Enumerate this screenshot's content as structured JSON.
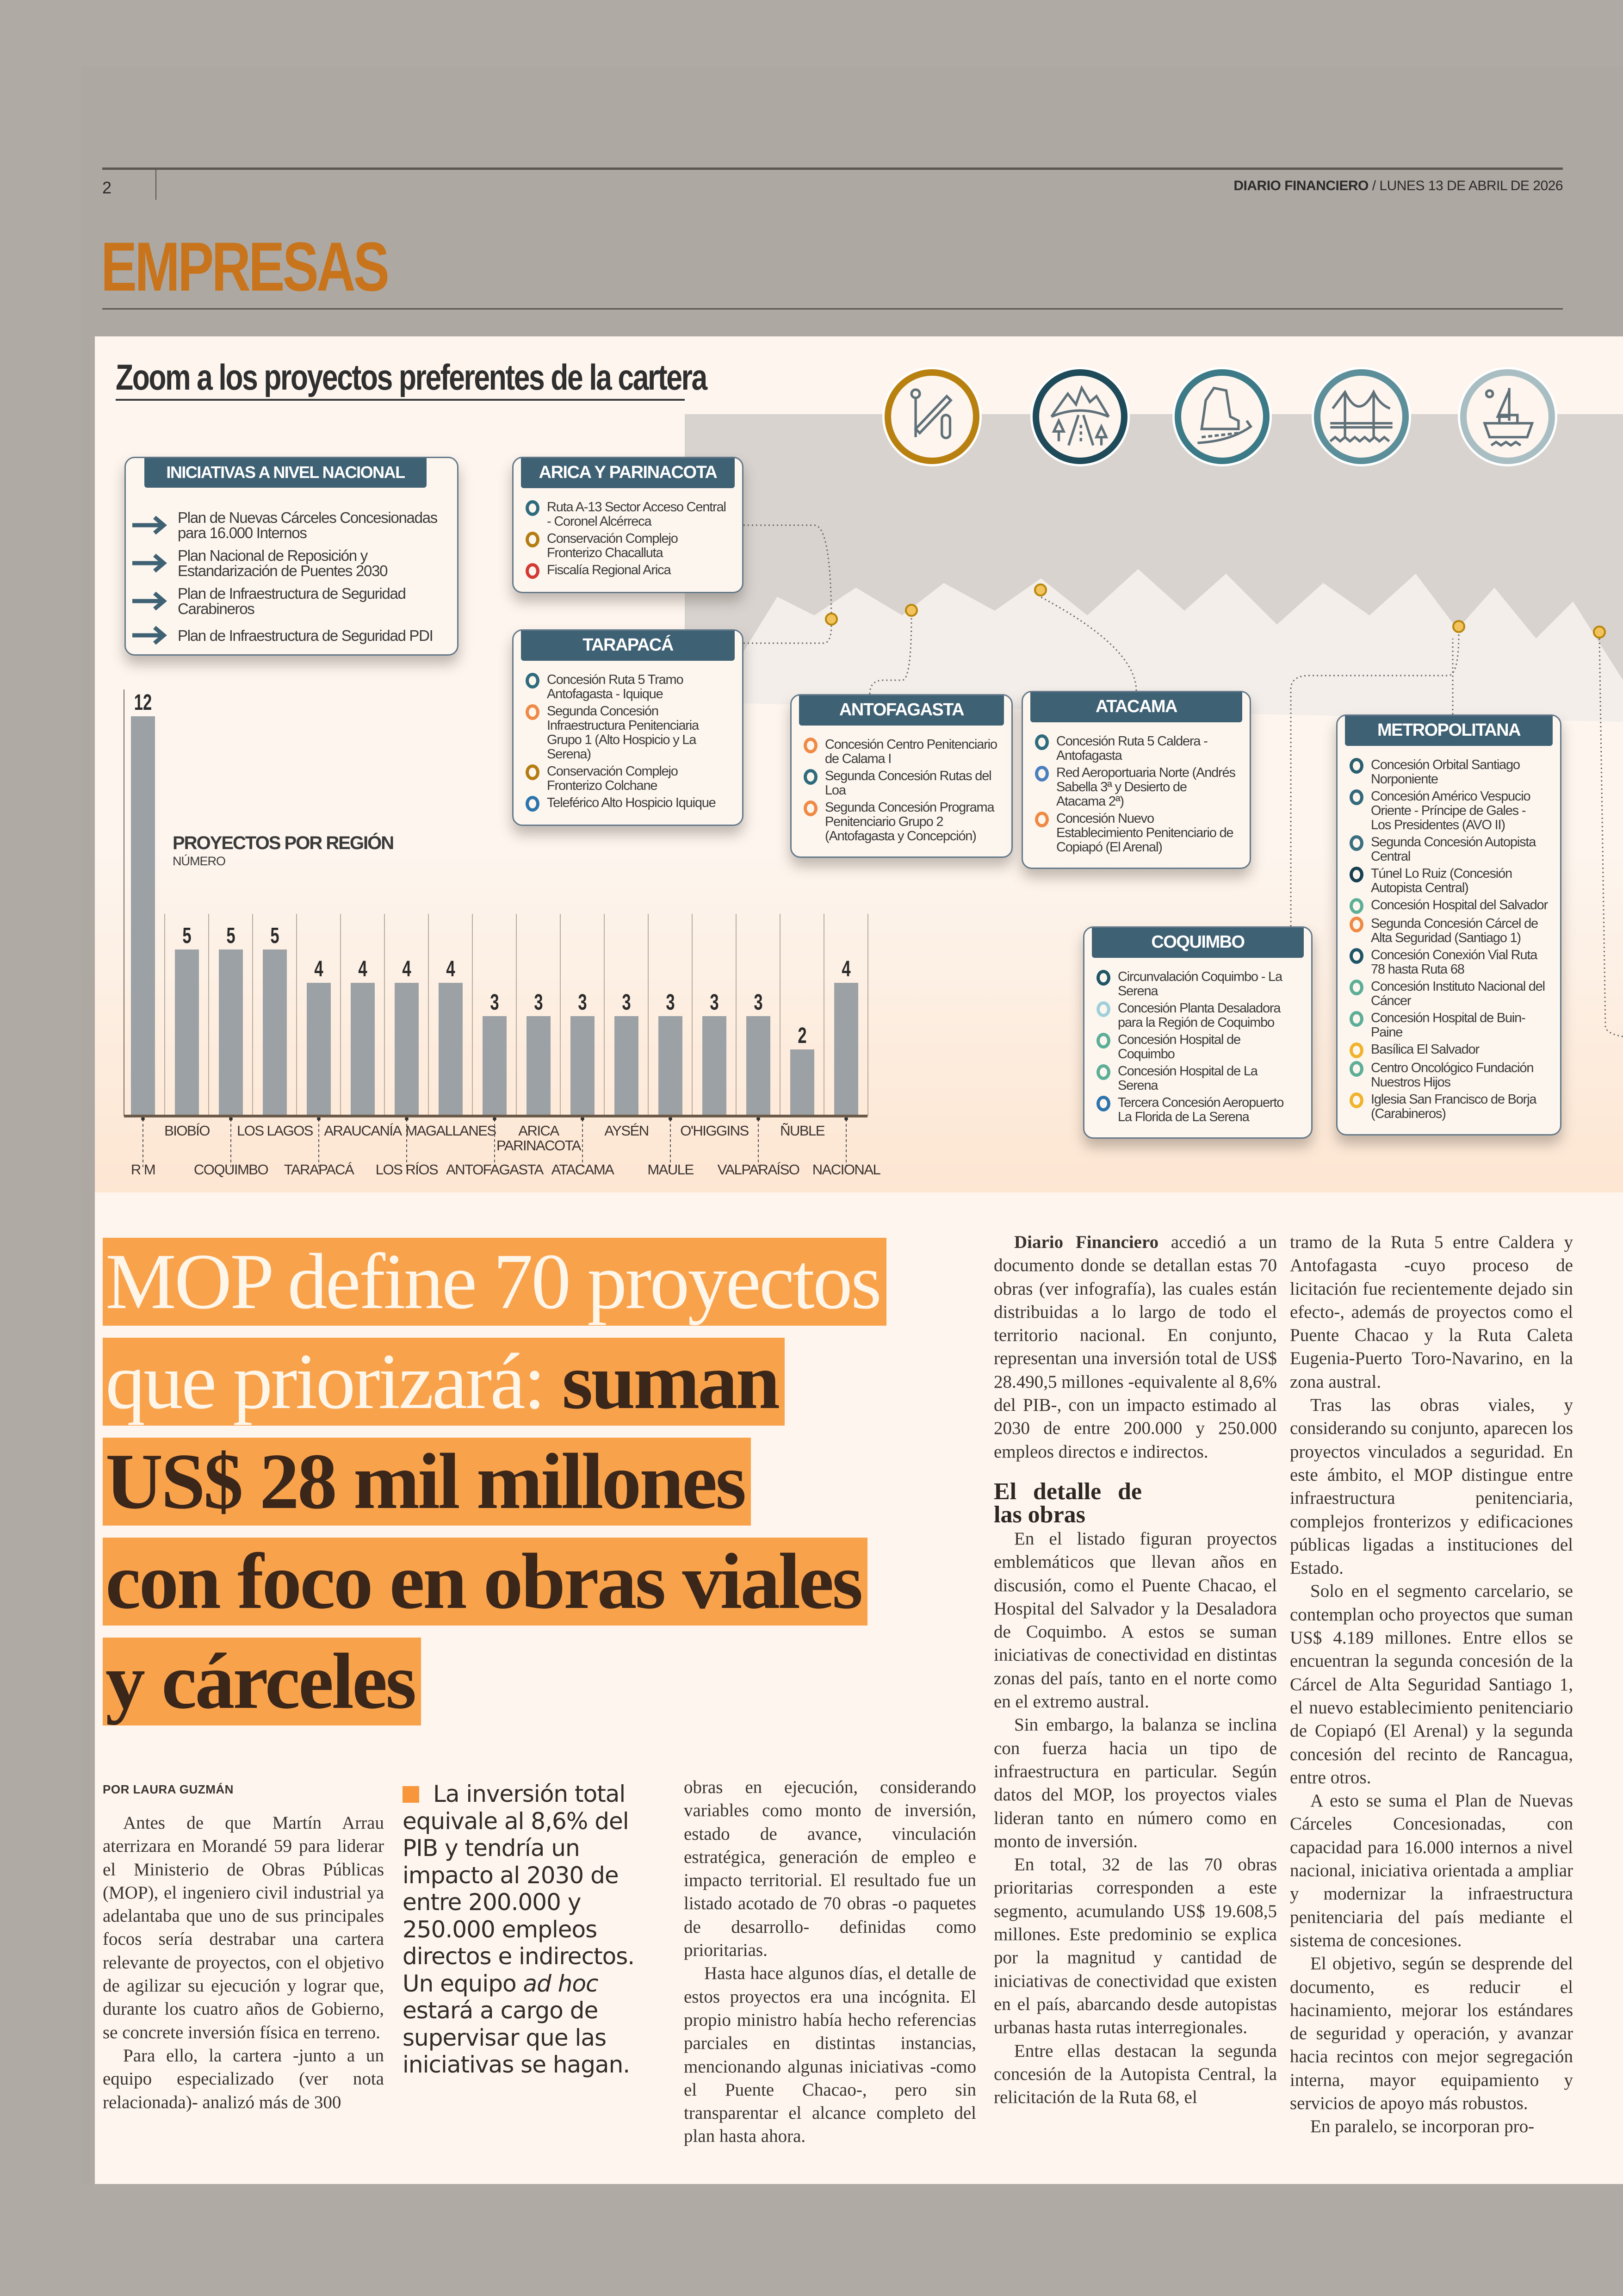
{
  "header": {
    "page_number": "2",
    "publication": "DIARIO FINANCIERO",
    "date": " / LUNES 13 DE ABRIL DE 2026",
    "section": "EMPRESAS"
  },
  "infographic": {
    "title": "Zoom a los proyectos preferentes de la cartera",
    "category_icons": [
      {
        "name": "border-crossing-icon",
        "color": "#b8800f"
      },
      {
        "name": "mountain-road-icon",
        "color": "#1f4a5a"
      },
      {
        "name": "coastal-road-icon",
        "color": "#3b7a86"
      },
      {
        "name": "bridge-icon",
        "color": "#5c8f9a"
      },
      {
        "name": "boat-icon",
        "color": "#a9bec3"
      }
    ],
    "national": {
      "title": "INICIATIVAS A NIVEL NACIONAL",
      "items": [
        "Plan de Nuevas Cárceles Concesionadas para 16.000 Internos",
        "Plan Nacional de Reposición y Estandarización de Puentes 2030",
        "Plan de Infraestructura de Seguridad Carabineros",
        "Plan de Infraestructura de Seguridad PDI"
      ]
    },
    "regions": [
      {
        "title": "ARICA Y PARINACOTA",
        "items": [
          {
            "text": "Ruta A-13 Sector Acceso Central - Coronel Alcérreca",
            "color": "#2e6b7c"
          },
          {
            "text": "Conservación Complejo Fronterizo Chacalluta",
            "color": "#b37d12"
          },
          {
            "text": "Fiscalía Regional Arica",
            "color": "#d23a33"
          }
        ]
      },
      {
        "title": "TARAPACÁ",
        "items": [
          {
            "text": "Concesión Ruta 5 Tramo Antofagasta - Iquique",
            "color": "#2e6b7c"
          },
          {
            "text": "Segunda Concesión Infraestructura Penitenciaria Grupo 1 (Alto Hospicio y La Serena)",
            "color": "#ef8a45"
          },
          {
            "text": "Conservación Complejo Fronterizo Colchane",
            "color": "#b37d12"
          },
          {
            "text": "Teleférico Alto Hospicio Iquique",
            "color": "#2d74ad"
          }
        ]
      },
      {
        "title": "ANTOFAGASTA",
        "items": [
          {
            "text": "Concesión Centro Penitenciario de Calama I",
            "color": "#ef8a45"
          },
          {
            "text": "Segunda Concesión Rutas del Loa",
            "color": "#2e6b7c"
          },
          {
            "text": "Segunda Concesión Programa Penitenciario Grupo 2 (Antofagasta y Concepción)",
            "color": "#ef8a45"
          }
        ]
      },
      {
        "title": "ATACAMA",
        "items": [
          {
            "text": "Concesión Ruta 5 Caldera - Antofagasta",
            "color": "#2e6b7c"
          },
          {
            "text": "Red Aeroportuaria Norte (Andrés Sabella 3ª y Desierto de Atacama 2ª)",
            "color": "#4a7fbf"
          },
          {
            "text": "Concesión Nuevo Establecimiento Penitenciario de Copiapó (El Arenal)",
            "color": "#ef8a45"
          }
        ]
      },
      {
        "title": "COQUIMBO",
        "items": [
          {
            "text": "Circunvalación Coquimbo - La Serena",
            "color": "#1f5566"
          },
          {
            "text": "Concesión Planta Desaladora para la Región de Coquimbo",
            "color": "#9fd0da"
          },
          {
            "text": "Concesión Hospital de Coquimbo",
            "color": "#5cae97"
          },
          {
            "text": "Concesión Hospital de La Serena",
            "color": "#5cae97"
          },
          {
            "text": "Tercera Concesión Aeropuerto La Florida de La Serena",
            "color": "#2d74ad"
          }
        ]
      },
      {
        "title": "METROPOLITANA",
        "items": [
          {
            "text": "Concesión Orbital Santiago Norponiente",
            "color": "#2b5f70"
          },
          {
            "text": "Concesión Américo Vespucio Oriente - Príncipe de Gales - Los Presidentes (AVO II)",
            "color": "#33697b"
          },
          {
            "text": "Segunda Concesión Autopista Central",
            "color": "#3a6f80"
          },
          {
            "text": "Túnel Lo Ruiz (Concesión Autopista Central)",
            "color": "#173f4f"
          },
          {
            "text": "Concesión Hospital del Salvador",
            "color": "#5cae97"
          },
          {
            "text": "Segunda Concesión Cárcel de Alta Seguridad (Santiago 1)",
            "color": "#ef8a45"
          },
          {
            "text": "Concesión Conexión Vial Ruta 78 hasta Ruta 68",
            "color": "#1f5566"
          },
          {
            "text": "Concesión Instituto Nacional del Cáncer",
            "color": "#5cae97"
          },
          {
            "text": "Concesión Hospital de Buin-Paine",
            "color": "#5cae97"
          },
          {
            "text": "Basílica El Salvador",
            "color": "#f1b32b"
          },
          {
            "text": "Centro Oncológico Fundación Nuestros Hijos",
            "color": "#5cae97"
          },
          {
            "text": "Iglesia San Francisco de Borja (Carabineros)",
            "color": "#f1b32b"
          }
        ]
      }
    ]
  },
  "chart_data": {
    "type": "bar",
    "title": "PROYECTOS POR REGIÓN",
    "subtitle": "NÚMERO",
    "categories": [
      "R M",
      "BIOBÍO",
      "COQUIMBO",
      "LOS LAGOS",
      "TARAPACÁ",
      "ARAUCANÍA",
      "LOS RÍOS",
      "MAGALLANES",
      "ANTOFAGASTA",
      "ARICA PARINACOTA",
      "ATACAMA",
      "AYSÉN",
      "MAULE",
      "O'HIGGINS",
      "VALPARAÍSO",
      "ÑUBLE",
      "NACIONAL"
    ],
    "values": [
      12,
      5,
      5,
      5,
      4,
      4,
      4,
      4,
      3,
      3,
      3,
      3,
      3,
      3,
      3,
      2,
      4
    ],
    "ylim": [
      0,
      12
    ],
    "bar_color": "#9ca1a5",
    "grid": false
  },
  "article": {
    "headline": {
      "line1_light": "MOP define 70 proyectos",
      "line2_light": "que priorizará: ",
      "line2_dark": "suman",
      "line3_dark": "US$ 28 mil millones",
      "line4_dark": "con foco en obras viales",
      "line5_dark": "y cárceles"
    },
    "byline": "POR LAURA GUZMÁN",
    "pull_quote": {
      "before": "La inversión total equivale al 8,6% del PIB y tendría un impacto al 2030 de entre 200.000 y 250.000 empleos directos e indirectos. Un equipo ",
      "italic": "ad hoc",
      "after": " estará a cargo de supervisar que las iniciativas se hagan."
    },
    "col1": [
      "Antes de que Martín Arrau aterrizara en Morandé 59 para liderar el Ministerio de Obras Públicas (MOP), el ingeniero civil industrial ya adelantaba que uno de sus principales focos sería destrabar una cartera relevante de proyectos, con el objetivo de agilizar su ejecución y lograr que, durante los cuatro años de Gobierno, se concrete inversión física en terreno.",
      "Para ello, la cartera -junto a un equipo especializado (ver nota relacionada)- analizó más de 300"
    ],
    "col2": [
      "obras en ejecución, considerando variables como monto de inversión, estado de avance, vinculación estratégica, generación de empleo e impacto territorial. El resultado fue un listado acotado de 70 obras -o paquetes de desarrollo- definidas como prioritarias.",
      "Hasta hace algunos días, el detalle de estos proyectos era una incógnita. El propio ministro había hecho referencias parciales en distintas instancias, mencionando algunas iniciativas -como el Puente Chacao-, pero sin transparentar el alcance completo del plan hasta ahora."
    ],
    "col3_lead": "Diario Financiero",
    "col3_first": " accedió a un documento donde se detallan estas 70 obras (ver infografía), las cuales están distribuidas a lo largo de todo el territorio nacional. En conjunto, representan una inversión total de US$ 28.490,5 millones -equivalente al 8,6% del PIB-, con un impacto estimado al 2030 de entre 200.000 y 250.000 empleos directos e indirectos.",
    "subheading": "El detalle de las obras",
    "col3": [
      "En el listado figuran proyectos emblemáticos que llevan años en discusión, como el Puente Chacao, el Hospital del Salvador y la Desaladora de Coquimbo. A estos se suman iniciativas de conectividad en distintas zonas del país, tanto en el norte como en el extremo austral.",
      "Sin embargo, la balanza se inclina con fuerza hacia un tipo de infraestructura en particular. Según datos del MOP, los proyectos viales lideran tanto en número como en monto de inversión.",
      "En total, 32 de las 70 obras prioritarias corresponden a este segmento, acumulando US$ 19.608,5 millones. Este predominio se explica por la magnitud y cantidad de iniciativas de conectividad que existen en el país, abarcando desde autopistas urbanas hasta rutas interregionales.",
      "Entre ellas destacan la segunda concesión de la Autopista Central, la relicitación de la Ruta 68, el"
    ],
    "col4": [
      "tramo de la Ruta 5 entre Caldera y Antofagasta -cuyo proceso de licitación fue recientemente dejado sin efecto-, además de proyectos como el Puente Chacao y la Ruta Caleta Eugenia-Puerto Toro-Navarino, en la zona austral.",
      "Tras las obras viales, y considerando su conjunto, aparecen los proyectos vinculados a seguridad. En este ámbito, el MOP distingue entre infraestructura penitenciaria, complejos fronterizos y edificaciones públicas ligadas a instituciones del Estado.",
      "Solo en el segmento carcelario, se contemplan ocho proyectos que suman US$ 4.189 millones. Entre ellos se encuentran la segunda concesión de la Cárcel de Alta Seguridad Santiago 1, el nuevo establecimiento penitenciario de Copiapó (El Arenal) y la segunda concesión del recinto de Rancagua, entre otros.",
      "A esto se suma el Plan de Nuevas Cárceles Concesionadas, con capacidad para 16.000 internos a nivel nacional, iniciativa orientada a ampliar y modernizar la infraestructura penitenciaria del país mediante el sistema de concesiones.",
      "El objetivo, según se desprende del documento, es reducir el hacinamiento, mejorar los estándares de seguridad y operación, y avanzar hacia recintos con mejor segregación interna, mayor equipamiento y servicios de apoyo más robustos.",
      "En paralelo, se incorporan pro-"
    ]
  }
}
